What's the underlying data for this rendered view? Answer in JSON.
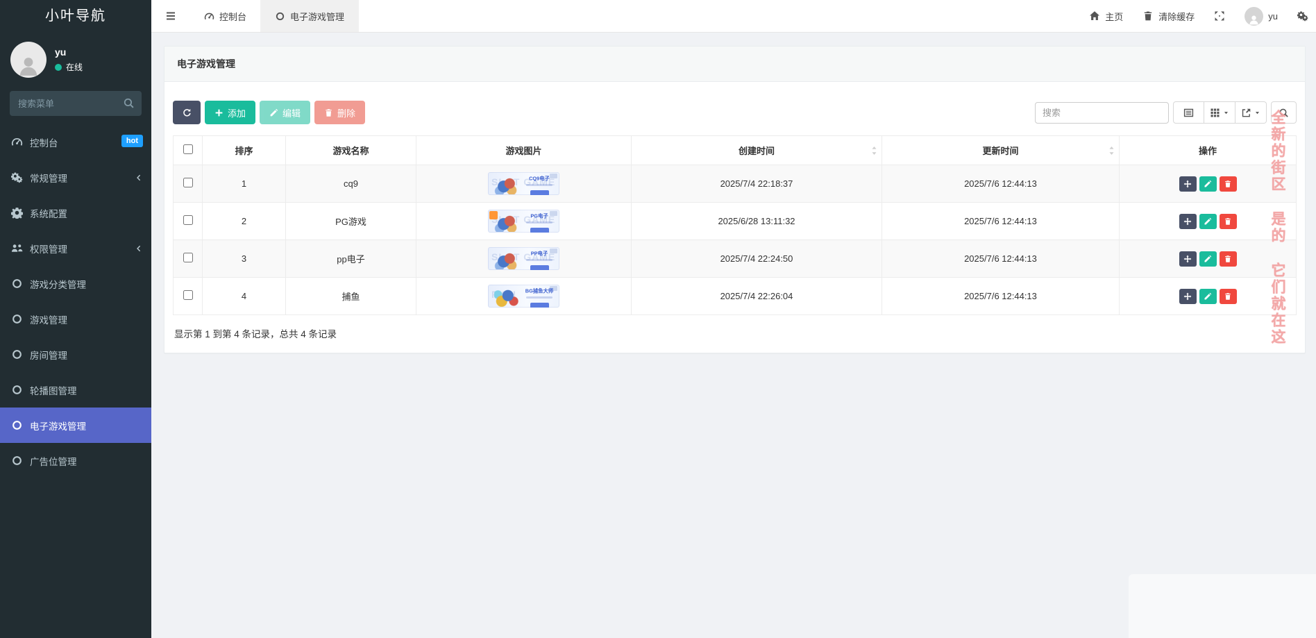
{
  "brand": "小叶导航",
  "user_panel": {
    "name": "yu",
    "status": "在线"
  },
  "sidebar": {
    "search_placeholder": "搜索菜单",
    "items": [
      {
        "label": "控制台",
        "icon": "dashboard-icon",
        "badge": "hot"
      },
      {
        "label": "常规管理",
        "icon": "cogs-icon",
        "chevron": true
      },
      {
        "label": "系统配置",
        "icon": "cog-icon"
      },
      {
        "label": "权限管理",
        "icon": "users-icon",
        "chevron": true
      },
      {
        "label": "游戏分类管理",
        "icon": "circle-o-icon"
      },
      {
        "label": "游戏管理",
        "icon": "circle-o-icon"
      },
      {
        "label": "房间管理",
        "icon": "circle-o-icon"
      },
      {
        "label": "轮播图管理",
        "icon": "circle-o-icon"
      },
      {
        "label": "电子游戏管理",
        "icon": "circle-o-icon",
        "active": true
      },
      {
        "label": "广告位管理",
        "icon": "circle-o-icon"
      }
    ]
  },
  "topbar": {
    "tabs": [
      {
        "label": "控制台",
        "icon": "dashboard-icon"
      },
      {
        "label": "电子游戏管理",
        "icon": "circle-o-icon",
        "active": true
      }
    ],
    "home": "主页",
    "clear_cache": "清除缓存",
    "username": "yu"
  },
  "panel": {
    "title": "电子游戏管理"
  },
  "toolbar": {
    "add": "添加",
    "edit": "编辑",
    "delete": "删除",
    "search_placeholder": "搜索"
  },
  "table": {
    "headers": {
      "sort": "排序",
      "name": "游戏名称",
      "image": "游戏图片",
      "created": "创建时间",
      "updated": "更新时间",
      "actions": "操作"
    },
    "rows": [
      {
        "sort": "1",
        "name": "cq9",
        "banner_title": "CQ9电子",
        "banner_bg_text": "SLOT GAME",
        "created": "2025/7/4 22:18:37",
        "updated": "2025/7/6 12:44:13"
      },
      {
        "sort": "2",
        "name": "PG游戏",
        "banner_title": "PG电子",
        "banner_bg_text": "SLOT GAME",
        "corner_badge": true,
        "created": "2025/6/28 13:11:32",
        "updated": "2025/7/6 12:44:13"
      },
      {
        "sort": "3",
        "name": "pp电子",
        "banner_title": "PP电子",
        "banner_bg_text": "SLOT GAME",
        "created": "2025/7/4 22:24:50",
        "updated": "2025/7/6 12:44:13"
      },
      {
        "sort": "4",
        "name": "捕鱼",
        "banner_title": "BG捕鱼大师",
        "banner_bg_text": "FISH",
        "banner_style": "fish",
        "created": "2025/7/4 22:26:04",
        "updated": "2025/7/6 12:44:13"
      }
    ],
    "summary": "显示第 1 到第 4 条记录，总共 4 条记录"
  },
  "watermark": "全新的街区 是的 它们就在这",
  "colors": {
    "sidebar_bg": "#222d32",
    "active_menu": "#5766c8",
    "badge_hot": "#1e9fff",
    "btn_refresh": "#485066",
    "btn_add": "#1abc9c",
    "btn_delete": "#e74c3c",
    "watermark": "#f2a0a0"
  }
}
